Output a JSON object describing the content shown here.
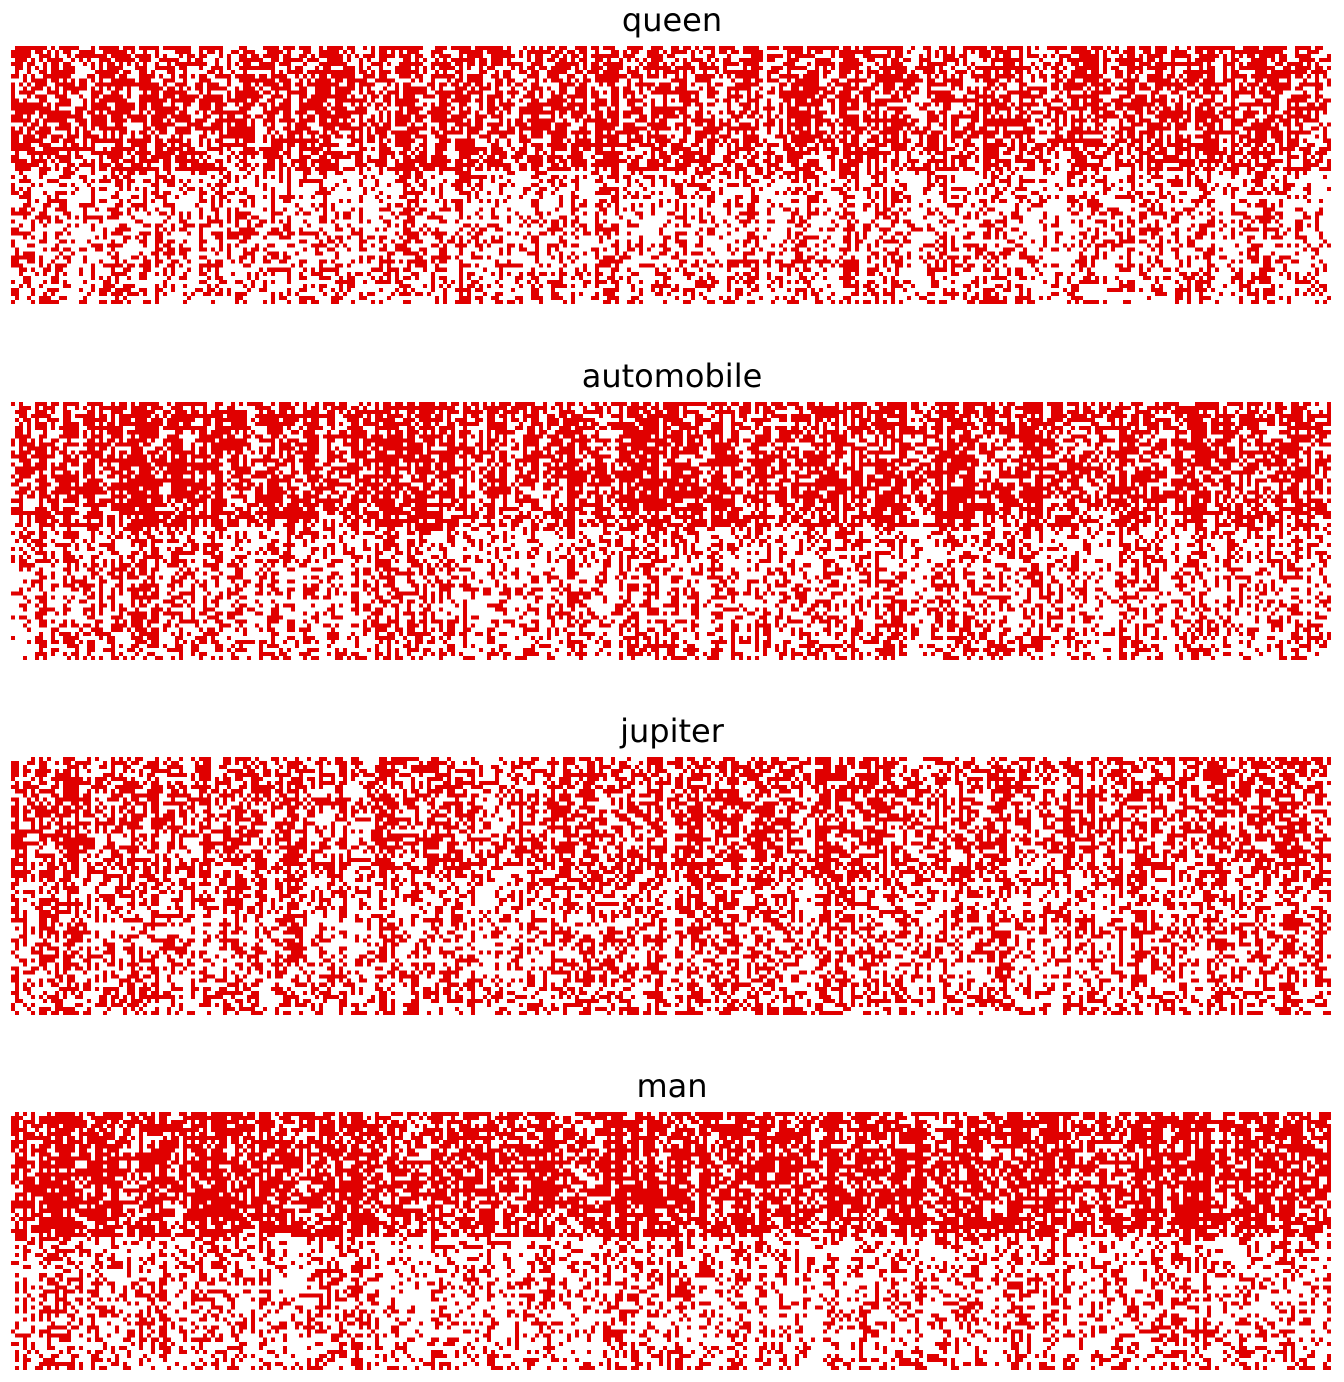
{
  "chart_data": [
    {
      "type": "heatmap",
      "title": "queen",
      "seed": 11,
      "cols": 330,
      "rows": 64,
      "value_set": [
        0,
        1
      ],
      "band_split_row": 31,
      "density_top": 0.62,
      "density_bottom": 0.36,
      "column_variation": 0.28
    },
    {
      "type": "heatmap",
      "title": "automobile",
      "seed": 23,
      "cols": 330,
      "rows": 64,
      "value_set": [
        0,
        1
      ],
      "band_split_row": 31,
      "density_top": 0.66,
      "density_bottom": 0.4,
      "column_variation": 0.3
    },
    {
      "type": "heatmap",
      "title": "jupiter",
      "seed": 37,
      "cols": 330,
      "rows": 64,
      "value_set": [
        0,
        1
      ],
      "band_split_row": 31,
      "density_top": 0.55,
      "density_bottom": 0.42,
      "column_variation": 0.28
    },
    {
      "type": "heatmap",
      "title": "man",
      "seed": 53,
      "cols": 330,
      "rows": 64,
      "value_set": [
        0,
        1
      ],
      "band_split_row": 31,
      "density_top": 0.7,
      "density_bottom": 0.33,
      "column_variation": 0.25
    }
  ],
  "colors": {
    "on": "#e00000",
    "off": "#ffffff",
    "title": "#000000"
  }
}
